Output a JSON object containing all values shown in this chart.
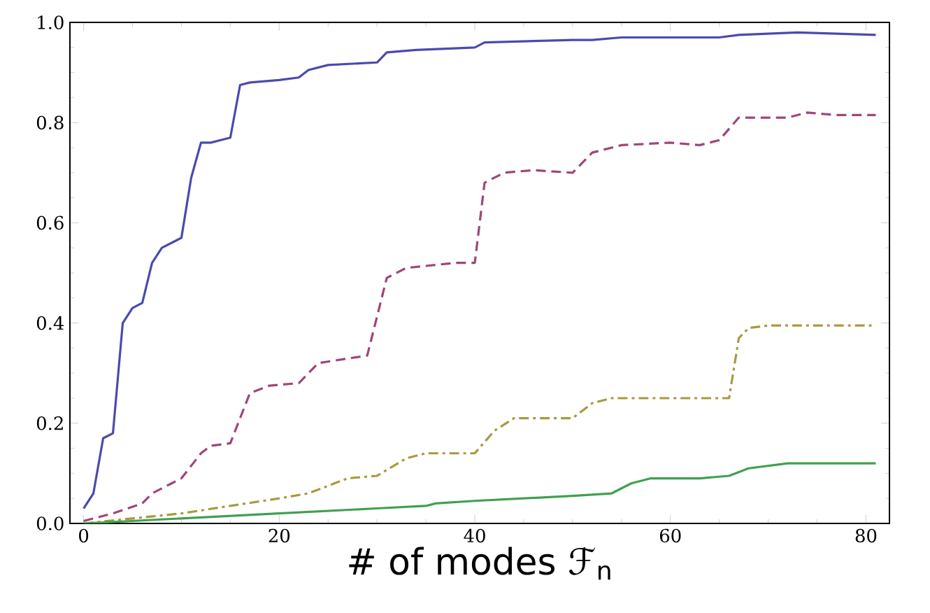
{
  "chart_data": {
    "type": "line",
    "xlabel": "# of modes ℱ$_{n}$",
    "xlim": [
      -1.4,
      82.4
    ],
    "ylim": [
      0,
      1
    ],
    "xticks": [
      0,
      20,
      40,
      60,
      80
    ],
    "yticks": [
      {
        "value": 0,
        "label": "0.0"
      },
      {
        "value": 0.2,
        "label": "0.2"
      },
      {
        "value": 0.4,
        "label": "0.4"
      },
      {
        "value": 0.6,
        "label": "0.6"
      },
      {
        "value": 0.8,
        "label": "0.8"
      },
      {
        "value": 1,
        "label": "1.0"
      }
    ],
    "series": [
      {
        "color": "#4a4ab0",
        "line_style": "solid",
        "x": [
          0,
          1,
          2,
          3,
          4,
          5,
          6,
          7,
          8,
          9,
          10,
          11,
          12,
          13,
          14,
          15,
          16,
          17,
          20,
          22,
          23,
          25,
          30,
          31,
          34,
          40,
          41,
          50,
          52,
          55,
          65,
          67,
          73,
          81
        ],
        "values": [
          0.03,
          0.06,
          0.17,
          0.18,
          0.4,
          0.43,
          0.44,
          0.52,
          0.55,
          0.56,
          0.57,
          0.69,
          0.76,
          0.76,
          0.765,
          0.77,
          0.875,
          0.88,
          0.885,
          0.89,
          0.905,
          0.915,
          0.92,
          0.94,
          0.945,
          0.95,
          0.96,
          0.965,
          0.965,
          0.97,
          0.97,
          0.975,
          0.98,
          0.975
        ]
      },
      {
        "color": "#a0457a",
        "line_style": "dashed",
        "x": [
          0,
          3,
          6,
          7,
          9,
          10,
          12,
          13,
          15,
          16,
          17,
          19,
          22,
          24,
          29,
          31,
          33,
          38,
          40,
          41,
          43,
          46,
          50,
          52,
          55,
          60,
          63,
          65,
          67,
          72,
          74,
          77,
          81
        ],
        "values": [
          0.005,
          0.02,
          0.04,
          0.06,
          0.08,
          0.09,
          0.14,
          0.155,
          0.16,
          0.21,
          0.26,
          0.275,
          0.28,
          0.32,
          0.335,
          0.49,
          0.51,
          0.52,
          0.52,
          0.68,
          0.7,
          0.705,
          0.7,
          0.74,
          0.755,
          0.76,
          0.755,
          0.765,
          0.81,
          0.81,
          0.82,
          0.815,
          0.815
        ]
      },
      {
        "color": "#a89a40",
        "line_style": "dashdotted",
        "x": [
          0,
          5,
          10,
          15,
          20,
          23,
          25,
          27,
          30,
          33,
          35,
          40,
          42,
          44,
          50,
          52,
          54,
          60,
          66,
          67,
          68,
          70,
          81
        ],
        "values": [
          0,
          0.01,
          0.02,
          0.035,
          0.05,
          0.06,
          0.075,
          0.09,
          0.095,
          0.13,
          0.14,
          0.14,
          0.185,
          0.21,
          0.21,
          0.24,
          0.25,
          0.25,
          0.25,
          0.37,
          0.39,
          0.395,
          0.395
        ]
      },
      {
        "color": "#40a050",
        "line_style": "solid",
        "x": [
          0,
          10,
          20,
          25,
          30,
          35,
          36,
          40,
          50,
          54,
          56,
          58,
          63,
          66,
          68,
          72,
          81
        ],
        "values": [
          0,
          0.01,
          0.02,
          0.025,
          0.03,
          0.035,
          0.04,
          0.045,
          0.055,
          0.06,
          0.08,
          0.09,
          0.09,
          0.095,
          0.11,
          0.12,
          0.12
        ]
      }
    ]
  }
}
